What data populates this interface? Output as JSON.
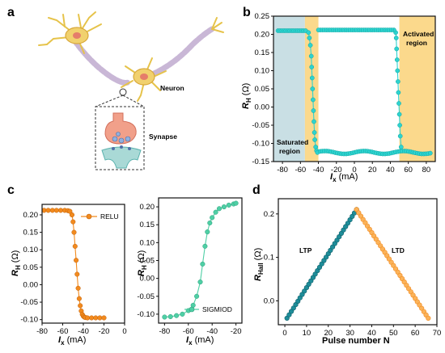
{
  "panels": {
    "a": {
      "letter": "a",
      "neuron_label": "Neuron",
      "synapse_label": "Synapse"
    },
    "b": {
      "letter": "b"
    },
    "c": {
      "letter": "c"
    },
    "d": {
      "letter": "d"
    }
  },
  "colors": {
    "cyan": "#2ed3cf",
    "cyan_edge": "#0ea7a4",
    "orange": "#f28a1e",
    "green": "#4fcfa5",
    "teal": "#1f8e9a",
    "saturated_fill": "#c9dfe4",
    "activated_fill": "#fbd98c"
  },
  "chart_data": [
    {
      "id": "b",
      "type": "line",
      "xlabel_main": "I",
      "xlabel_sub": "x",
      "xlabel_unit": " (mA)",
      "ylabel_main": "R",
      "ylabel_sub": "H",
      "ylabel_unit": " (Ω)",
      "xlim": [
        -90,
        90
      ],
      "ylim": [
        -0.15,
        0.25
      ],
      "xticks": [
        "-80",
        "-60",
        "-40",
        "-20",
        "0",
        "20",
        "40",
        "60",
        "80"
      ],
      "yticks": [
        "-0.15",
        "-0.10",
        "-0.05",
        "0.00",
        "0.05",
        "0.10",
        "0.15",
        "0.20",
        "0.25"
      ],
      "annotations": [
        "Saturated",
        "region",
        "Activated",
        "region"
      ],
      "regions": [
        {
          "name": "saturated",
          "x": [
            -90,
            -55
          ]
        },
        {
          "name": "activated",
          "x": [
            50,
            90
          ]
        },
        {
          "name": "switching",
          "x": [
            -55,
            -40
          ]
        }
      ],
      "series": [
        {
          "x_down": [
            -90,
            -60,
            -55,
            -50,
            -47,
            -45,
            -43,
            -40,
            80
          ],
          "y_down": [
            0.21,
            0.21,
            0.21,
            0.21,
            0.09,
            -0.03,
            -0.11,
            -0.125,
            -0.125
          ]
        },
        {
          "x_up": [
            85,
            60,
            55,
            52,
            50,
            48,
            46,
            -60,
            -85
          ],
          "y_up": [
            -0.125,
            -0.125,
            -0.12,
            -0.05,
            0.1,
            0.2,
            0.21,
            0.21,
            0.21
          ]
        }
      ]
    },
    {
      "id": "c1",
      "type": "line",
      "xlabel_main": "I",
      "xlabel_sub": "x",
      "xlabel_unit": " (mA)",
      "ylabel_main": "R",
      "ylabel_sub": "H",
      "ylabel_unit": " (Ω)",
      "xlim": [
        -80,
        0
      ],
      "ylim": [
        -0.11,
        0.23
      ],
      "xticks": [
        "-80",
        "-60",
        "-40",
        "-20",
        "0"
      ],
      "yticks": [
        "-0.10",
        "-0.05",
        "0.00",
        "0.05",
        "0.10",
        "0.15",
        "0.20"
      ],
      "series": [
        {
          "name": "RELU",
          "x": [
            -78,
            -74,
            -70,
            -66,
            -62,
            -58,
            -55,
            -53,
            -51,
            -50,
            -49,
            -48,
            -47,
            -46,
            -45,
            -44,
            -43,
            -42,
            -41,
            -40,
            -39,
            -38,
            -36,
            -32,
            -28,
            -24,
            -20
          ],
          "y": [
            0.213,
            0.213,
            0.213,
            0.213,
            0.213,
            0.213,
            0.212,
            0.21,
            0.2,
            0.18,
            0.15,
            0.11,
            0.07,
            0.03,
            -0.01,
            -0.04,
            -0.06,
            -0.075,
            -0.085,
            -0.09,
            -0.093,
            -0.094,
            -0.095,
            -0.095,
            -0.095,
            -0.095,
            -0.095
          ]
        }
      ]
    },
    {
      "id": "c2",
      "type": "line",
      "xlabel_main": "I",
      "xlabel_sub": "x",
      "xlabel_unit": " (mA)",
      "ylabel_main": "R",
      "ylabel_sub": "H",
      "ylabel_unit": " (Ω)",
      "xlim": [
        -85,
        -15
      ],
      "ylim": [
        -0.125,
        0.225
      ],
      "xticks": [
        "-80",
        "-60",
        "-40",
        "-20"
      ],
      "yticks": [
        "-0.10",
        "-0.05",
        "0.00",
        "0.05",
        "0.10",
        "0.15",
        "0.20"
      ],
      "series": [
        {
          "name": "SIGMIOD",
          "x": [
            -80,
            -75,
            -70,
            -65,
            -60,
            -56,
            -53,
            -50,
            -48,
            -46,
            -44,
            -42,
            -40,
            -37,
            -34,
            -30,
            -26,
            -22,
            -20
          ],
          "y": [
            -0.108,
            -0.107,
            -0.104,
            -0.1,
            -0.09,
            -0.075,
            -0.05,
            -0.01,
            0.04,
            0.09,
            0.13,
            0.155,
            0.17,
            0.185,
            0.195,
            0.2,
            0.205,
            0.208,
            0.21
          ]
        }
      ]
    },
    {
      "id": "d",
      "type": "scatter",
      "xlabel": "Pulse number N",
      "ylabel_main": "R",
      "ylabel_sub": "Hall",
      "ylabel_unit": " (Ω)",
      "xlim": [
        -3,
        70
      ],
      "ylim": [
        -0.055,
        0.235
      ],
      "xticks": [
        "0",
        "10",
        "20",
        "30",
        "40",
        "50",
        "60",
        "70"
      ],
      "yticks": [
        "0.0",
        "0.1",
        "0.2"
      ],
      "annotations": [
        "LTP",
        "LTD"
      ],
      "series": [
        {
          "name": "LTP",
          "x_start": 1,
          "x_end": 33,
          "y_start": -0.04,
          "y_end": 0.21
        },
        {
          "name": "LTD",
          "x_start": 33,
          "x_end": 66,
          "y_start": 0.21,
          "y_end": -0.04
        }
      ]
    }
  ]
}
